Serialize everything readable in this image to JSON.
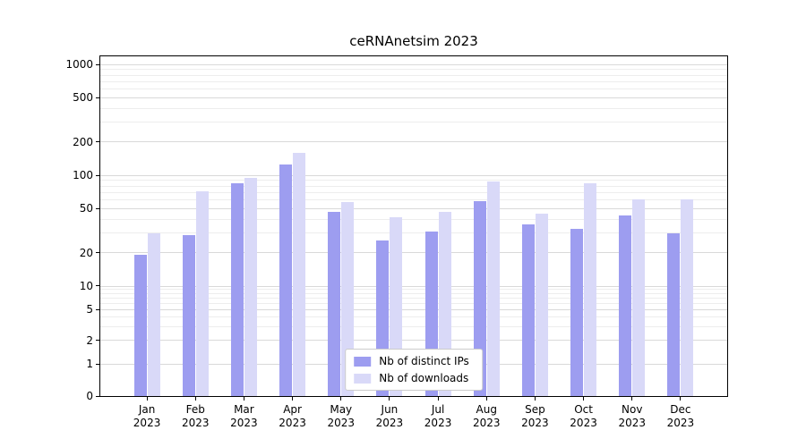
{
  "title": "ceRNAnetsim 2023",
  "chart_data": {
    "type": "bar",
    "title": "ceRNAnetsim 2023",
    "yscale": "symlog",
    "ylim": [
      0,
      1000
    ],
    "yticks": [
      0,
      1,
      2,
      5,
      10,
      20,
      50,
      100,
      200,
      500,
      1000
    ],
    "grid": true,
    "legend_position": "lower center",
    "categories": [
      "Jan",
      "Feb",
      "Mar",
      "Apr",
      "May",
      "Jun",
      "Jul",
      "Aug",
      "Sep",
      "Oct",
      "Nov",
      "Dec"
    ],
    "year_label": "2023",
    "series": [
      {
        "name": "Nb of distinct IPs",
        "color": "#9d9df0",
        "values": [
          19,
          29,
          85,
          125,
          47,
          26,
          31,
          58,
          36,
          33,
          43,
          30
        ]
      },
      {
        "name": "Nb of downloads",
        "color": "#d9d9f8",
        "values": [
          30,
          72,
          95,
          160,
          57,
          42,
          47,
          88,
          45,
          84,
          61,
          61
        ]
      }
    ]
  }
}
